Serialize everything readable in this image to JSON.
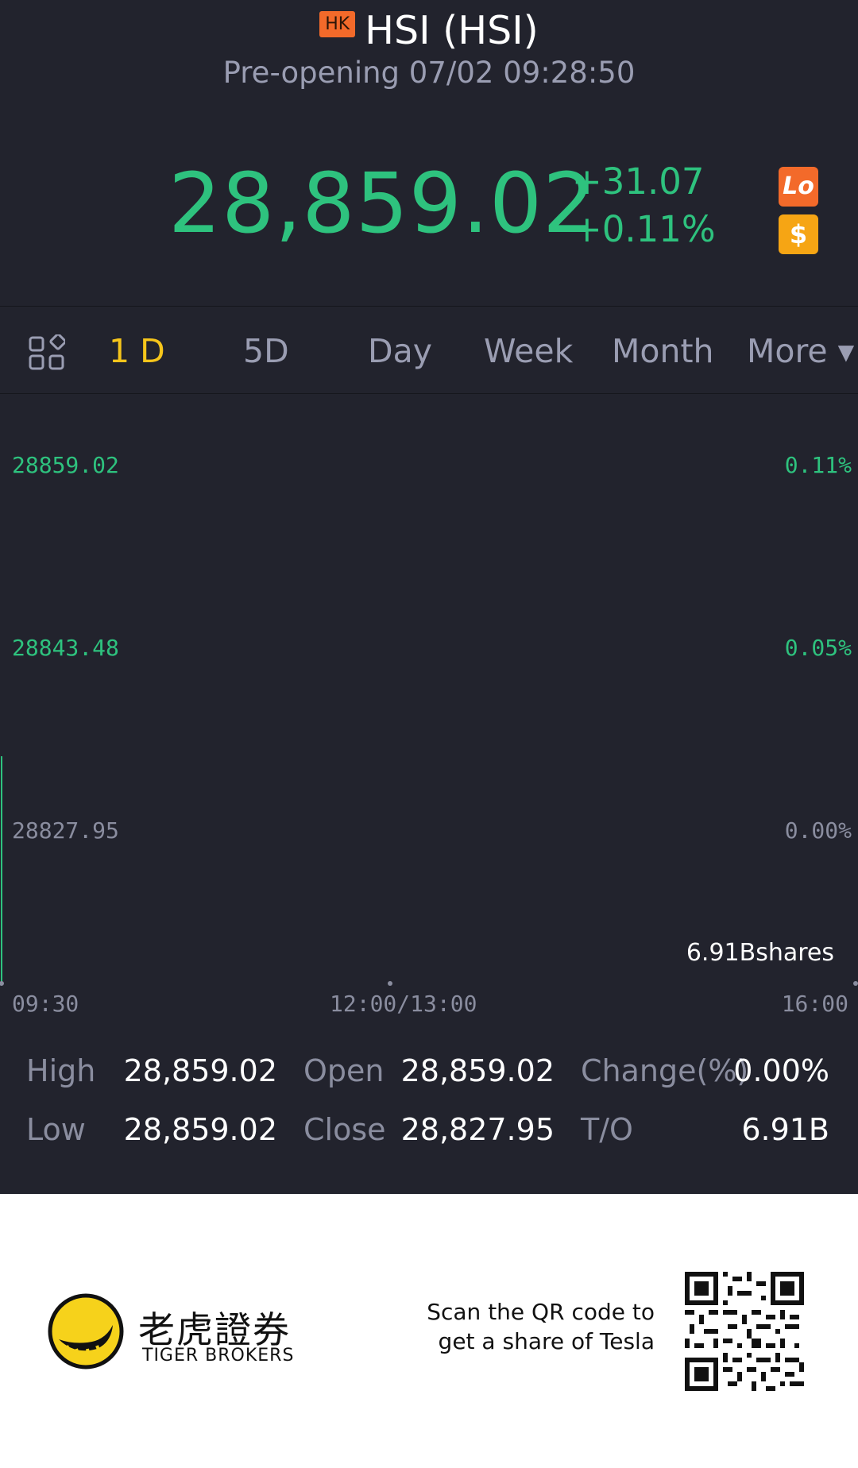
{
  "header": {
    "badge": "HK",
    "title": "HSI (HSI)",
    "status": "Pre-opening 07/02 09:28:50",
    "price": "28,859.02",
    "change_abs": "+31.07",
    "change_pct": "+0.11%",
    "lo_badge": "Lo",
    "dollar_badge": "$",
    "up_color": "#2ec27e"
  },
  "tabs": [
    {
      "label": "1 D",
      "active": true
    },
    {
      "label": "5D",
      "active": false
    },
    {
      "label": "Day",
      "active": false
    },
    {
      "label": "Week",
      "active": false
    },
    {
      "label": "Month",
      "active": false
    },
    {
      "label": "More ▾",
      "active": false
    }
  ],
  "chart": {
    "y_left": [
      "28859.02",
      "28843.48",
      "28827.95"
    ],
    "y_right": [
      "0.11%",
      "0.05%",
      "0.00%"
    ],
    "x_labels": [
      "09:30",
      "12:00/13:00",
      "16:00"
    ],
    "volume": "6.91Bshares"
  },
  "stats": {
    "high_label": "High",
    "high_value": "28,859.02",
    "open_label": "Open",
    "open_value": "28,859.02",
    "change_label": "Change(%)",
    "change_value": "0.00%",
    "low_label": "Low",
    "low_value": "28,859.02",
    "close_label": "Close",
    "close_value": "28,827.95",
    "to_label": "T/O",
    "to_value": "6.91B"
  },
  "footer": {
    "brand_cn": "老虎證券",
    "brand_en": "TIGER BROKERS",
    "scan_line1": "Scan the QR code to",
    "scan_line2": "get a share of Tesla"
  }
}
